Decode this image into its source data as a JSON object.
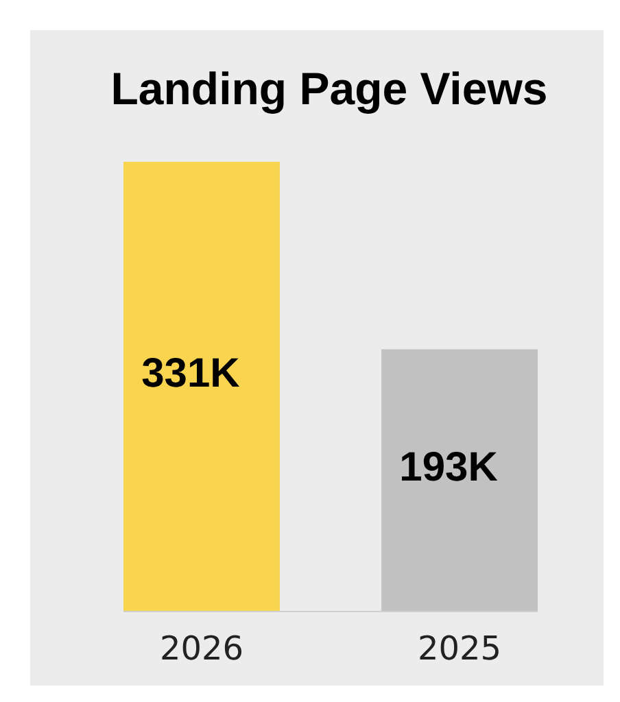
{
  "chart_data": {
    "type": "bar",
    "title": "Landing Page Views",
    "categories": [
      "2026",
      "2025"
    ],
    "values": [
      331000,
      193000
    ],
    "value_labels": [
      "331K",
      "193K"
    ],
    "colors": [
      "#f9d44f",
      "#c1c1c1"
    ]
  }
}
